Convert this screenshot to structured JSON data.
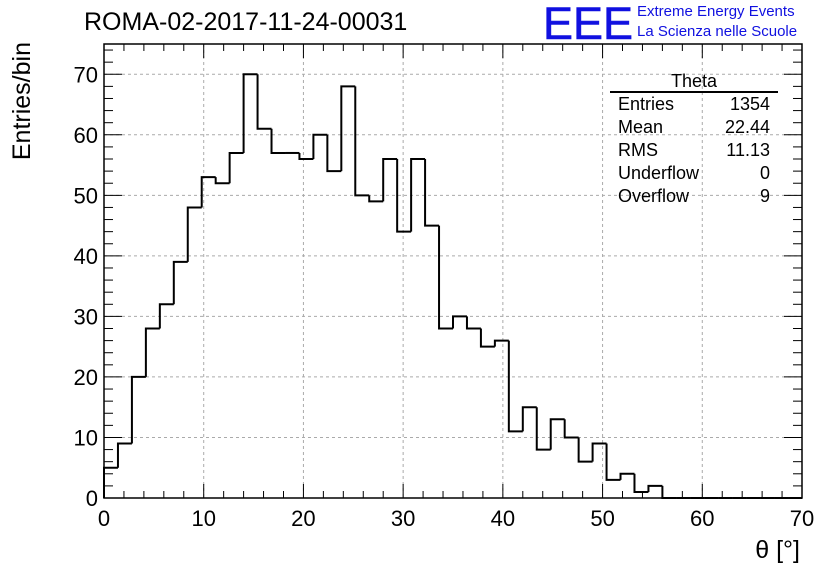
{
  "title": "ROMA-02-2017-11-24-00031",
  "logo": {
    "mark": "EEE",
    "line1": "Extreme Energy Events",
    "line2": "La Scienza nelle Scuole",
    "color": "#1010e0"
  },
  "stats": {
    "name": "Theta",
    "rows": [
      {
        "label": "Entries",
        "value": "1354"
      },
      {
        "label": "Mean",
        "value": "22.44"
      },
      {
        "label": "RMS",
        "value": "11.13"
      },
      {
        "label": "Underflow",
        "value": "0"
      },
      {
        "label": "Overflow",
        "value": "9"
      }
    ]
  },
  "chart_data": {
    "type": "histogram",
    "title": "ROMA-02-2017-11-24-00031",
    "xlabel": "θ [°]",
    "ylabel": "Entries/bin",
    "xlim": [
      0,
      70
    ],
    "ylim": [
      0,
      75
    ],
    "xticks": [
      0,
      10,
      20,
      30,
      40,
      50,
      60,
      70
    ],
    "yticks": [
      0,
      10,
      20,
      30,
      40,
      50,
      60,
      70
    ],
    "grid": true,
    "bin_width": 1.4,
    "bin_edges_start": 0,
    "values": [
      5,
      9,
      20,
      28,
      32,
      39,
      48,
      53,
      52,
      57,
      70,
      61,
      57,
      57,
      56,
      60,
      54,
      68,
      50,
      49,
      56,
      44,
      56,
      45,
      28,
      30,
      28,
      25,
      26,
      11,
      15,
      8,
      13,
      10,
      6,
      9,
      3,
      4,
      1,
      2,
      0,
      0,
      0,
      0,
      0,
      0,
      0,
      0,
      0,
      0
    ]
  }
}
